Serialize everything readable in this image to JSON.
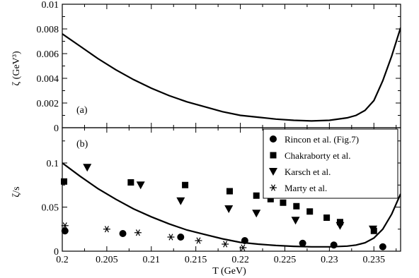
{
  "chart_data": [
    {
      "type": "line",
      "panel_label": "(a)",
      "ylabel": "ζ (GeV³)",
      "xlim": [
        0.2,
        0.238
      ],
      "ylim": [
        0,
        0.01
      ],
      "xticks": [
        0.2,
        0.205,
        0.21,
        0.215,
        0.22,
        0.225,
        0.23,
        0.235
      ],
      "yticks": [
        0,
        0.002,
        0.004,
        0.006,
        0.008,
        0.01
      ],
      "ytick_labels": [
        "0",
        "0.002",
        "0.004",
        "0.006",
        "0.008",
        "0.01"
      ],
      "series": [
        {
          "x": [
            0.2,
            0.202,
            0.204,
            0.206,
            0.208,
            0.21,
            0.212,
            0.214,
            0.216,
            0.218,
            0.22,
            0.222,
            0.224,
            0.226,
            0.228,
            0.23,
            0.232,
            0.233,
            0.234,
            0.235,
            0.236,
            0.237,
            0.238
          ],
          "y": [
            0.0076,
            0.0066,
            0.0056,
            0.0047,
            0.0039,
            0.0032,
            0.0026,
            0.0021,
            0.0017,
            0.0013,
            0.001,
            0.00085,
            0.0007,
            0.0006,
            0.00055,
            0.0006,
            0.0008,
            0.001,
            0.0014,
            0.0022,
            0.0038,
            0.0058,
            0.0081
          ]
        }
      ]
    },
    {
      "type": "scatter",
      "panel_label": "(b)",
      "ylabel": "ζ/s",
      "xlabel": "T (GeV)",
      "xlim": [
        0.2,
        0.238
      ],
      "ylim": [
        0,
        0.14
      ],
      "xticks": [
        0.2,
        0.205,
        0.21,
        0.215,
        0.22,
        0.225,
        0.23,
        0.235
      ],
      "xtick_labels": [
        "0.2",
        "0.205",
        "0.21",
        "0.215",
        "0.22",
        "0.225",
        "0.23",
        "0.235"
      ],
      "yticks": [
        0,
        0.05,
        0.1
      ],
      "ytick_labels": [
        "0",
        "0.05",
        "0.1"
      ],
      "legend_position": "top-right",
      "curve": {
        "x": [
          0.2,
          0.202,
          0.204,
          0.206,
          0.208,
          0.21,
          0.212,
          0.214,
          0.216,
          0.218,
          0.22,
          0.222,
          0.224,
          0.226,
          0.228,
          0.23,
          0.232,
          0.233,
          0.234,
          0.235,
          0.236,
          0.237,
          0.238
        ],
        "y": [
          0.1,
          0.085,
          0.071,
          0.059,
          0.048,
          0.039,
          0.031,
          0.024,
          0.019,
          0.014,
          0.01,
          0.008,
          0.0065,
          0.0055,
          0.005,
          0.005,
          0.0058,
          0.007,
          0.0095,
          0.015,
          0.025,
          0.042,
          0.065
        ]
      },
      "series": [
        {
          "name": "Rincon et al. (Fig.7)",
          "marker": "circle",
          "x": [
            0.2003,
            0.2068,
            0.2133,
            0.2205,
            0.227,
            0.2305,
            0.236
          ],
          "y": [
            0.023,
            0.02,
            0.016,
            0.012,
            0.009,
            0.007,
            0.005
          ]
        },
        {
          "name": "Chakraborty et al.",
          "marker": "square",
          "x": [
            0.2002,
            0.2077,
            0.2138,
            0.2188,
            0.2218,
            0.2234,
            0.2248,
            0.2263,
            0.2278,
            0.2297,
            0.2312,
            0.235
          ],
          "y": [
            0.079,
            0.078,
            0.075,
            0.068,
            0.063,
            0.059,
            0.055,
            0.051,
            0.045,
            0.038,
            0.033,
            0.023
          ]
        },
        {
          "name": "Karsch et al.",
          "marker": "triangle-down",
          "x": [
            0.2028,
            0.2088,
            0.2133,
            0.2187,
            0.2218,
            0.2262,
            0.2312,
            0.2349
          ],
          "y": [
            0.095,
            0.075,
            0.057,
            0.048,
            0.043,
            0.035,
            0.029,
            0.025
          ]
        },
        {
          "name": "Marty et al.",
          "marker": "asterisk",
          "x": [
            0.2003,
            0.205,
            0.2085,
            0.2122,
            0.2153,
            0.2183,
            0.2203
          ],
          "y": [
            0.029,
            0.025,
            0.021,
            0.016,
            0.012,
            0.008,
            0.004
          ]
        }
      ]
    }
  ]
}
